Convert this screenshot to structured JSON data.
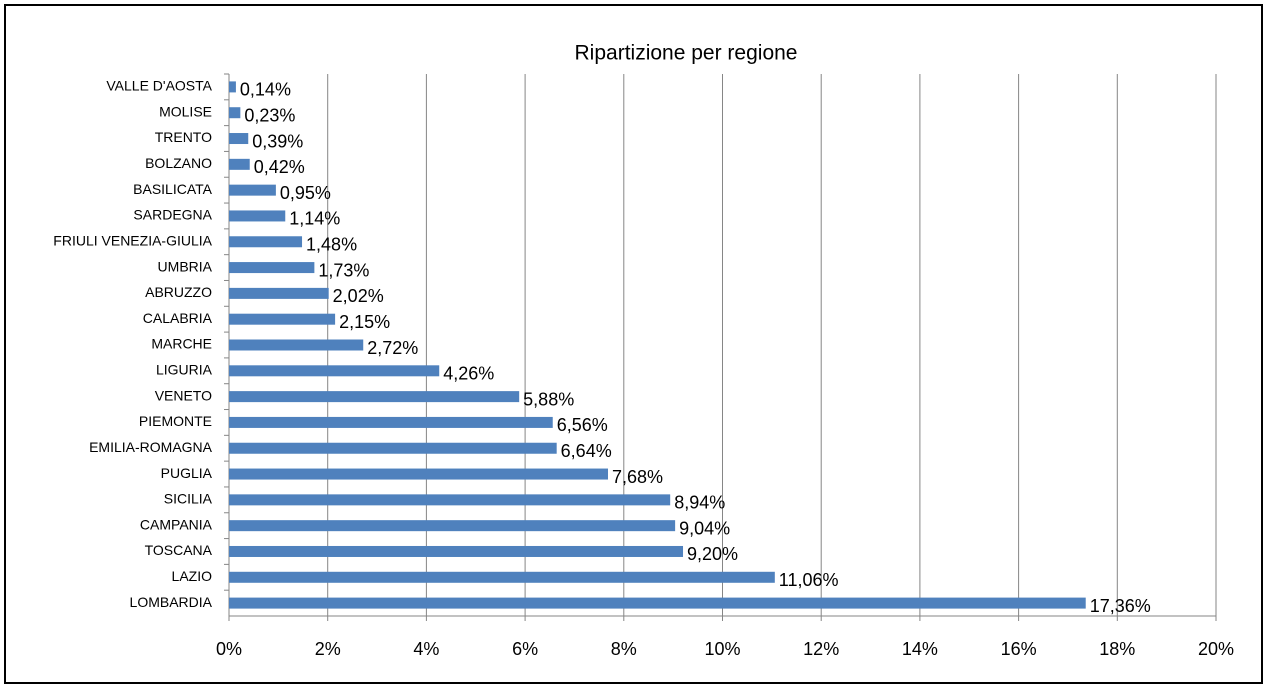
{
  "chart_data": {
    "type": "bar",
    "orientation": "horizontal",
    "title": "Ripartizione per regione",
    "categories": [
      "VALLE D'AOSTA",
      "MOLISE",
      "TRENTO",
      "BOLZANO",
      "BASILICATA",
      "SARDEGNA",
      "FRIULI VENEZIA-GIULIA",
      "UMBRIA",
      "ABRUZZO",
      "CALABRIA",
      "MARCHE",
      "LIGURIA",
      "VENETO",
      "PIEMONTE",
      "EMILIA-ROMAGNA",
      "PUGLIA",
      "SICILIA",
      "CAMPANIA",
      "TOSCANA",
      "LAZIO",
      "LOMBARDIA"
    ],
    "values": [
      0.14,
      0.23,
      0.39,
      0.42,
      0.95,
      1.14,
      1.48,
      1.73,
      2.02,
      2.15,
      2.72,
      4.26,
      5.88,
      6.56,
      6.64,
      7.68,
      8.94,
      9.04,
      9.2,
      11.06,
      17.36
    ],
    "value_labels": [
      "0,14%",
      "0,23%",
      "0,39%",
      "0,42%",
      "0,95%",
      "1,14%",
      "1,48%",
      "1,73%",
      "2,02%",
      "2,15%",
      "2,72%",
      "4,26%",
      "5,88%",
      "6,56%",
      "6,64%",
      "7,68%",
      "8,94%",
      "9,04%",
      "9,20%",
      "11,06%",
      "17,36%"
    ],
    "color": "#4f81bd",
    "xlim": [
      0,
      20
    ],
    "xticks": [
      {
        "value": 0,
        "label": "0%"
      },
      {
        "value": 2,
        "label": "2%"
      },
      {
        "value": 4,
        "label": "4%"
      },
      {
        "value": 6,
        "label": "6%"
      },
      {
        "value": 8,
        "label": "8%"
      },
      {
        "value": 10,
        "label": "10%"
      },
      {
        "value": 12,
        "label": "12%"
      },
      {
        "value": 14,
        "label": "14%"
      },
      {
        "value": 16,
        "label": "16%"
      },
      {
        "value": 18,
        "label": "18%"
      },
      {
        "value": 20,
        "label": "20%"
      }
    ],
    "grid": true
  }
}
